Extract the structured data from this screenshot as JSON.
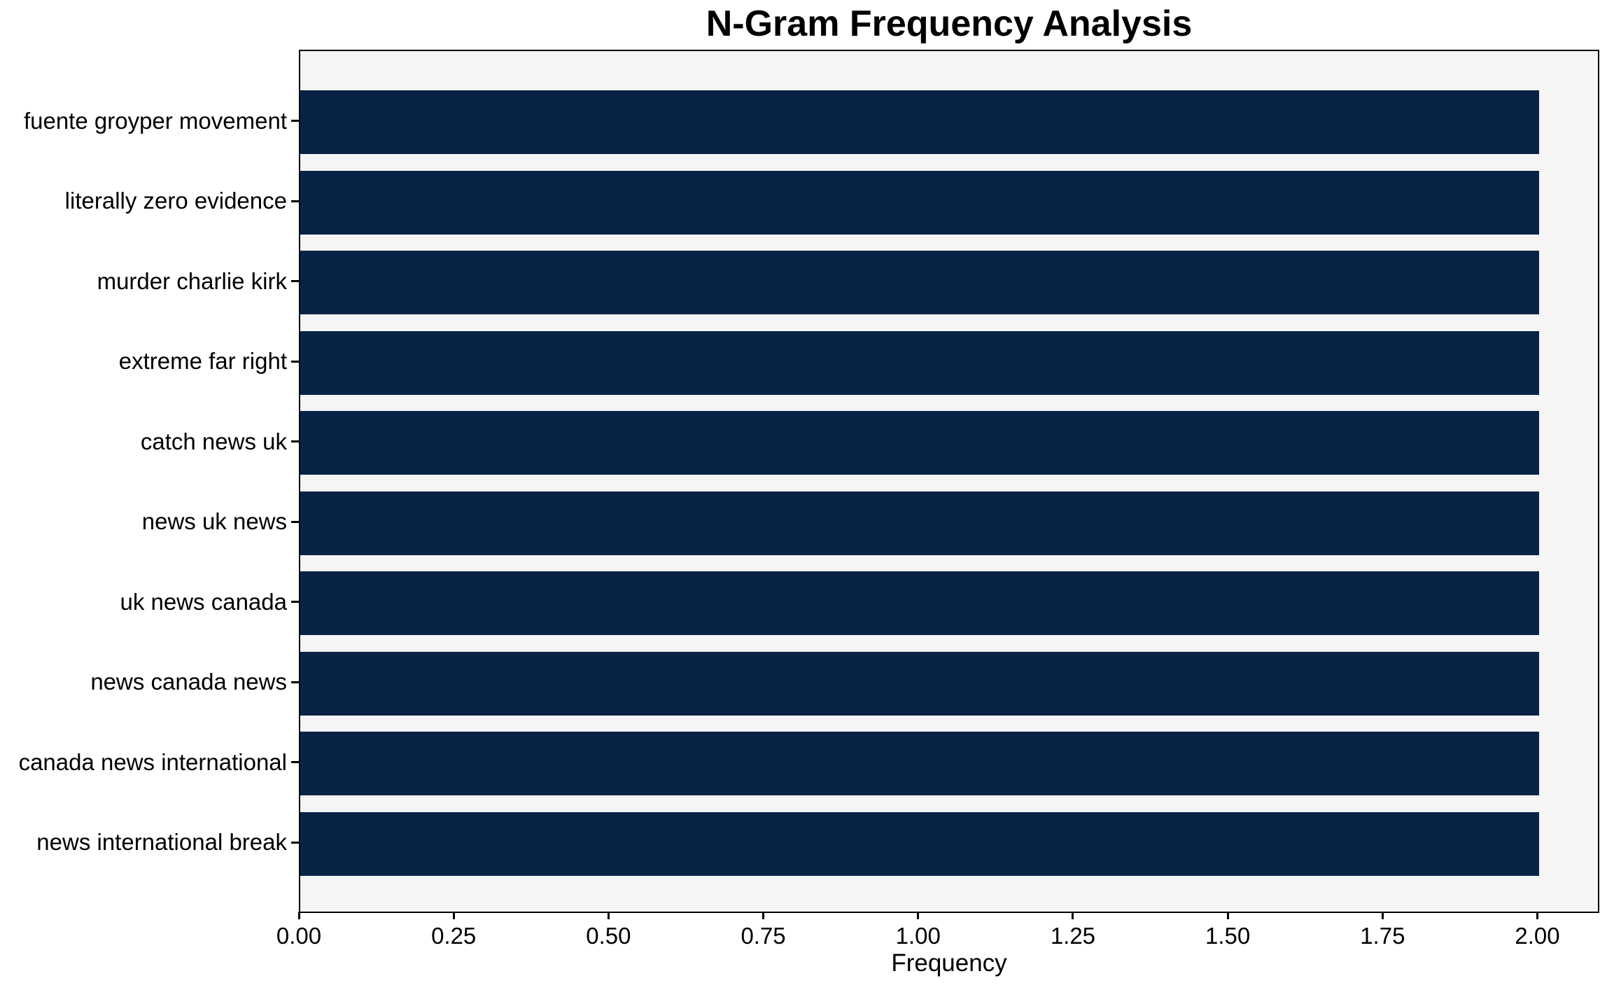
{
  "chart_data": {
    "type": "bar",
    "orientation": "horizontal",
    "title": "N-Gram Frequency Analysis",
    "xlabel": "Frequency",
    "ylabel": "",
    "categories": [
      "fuente groyper movement",
      "literally zero evidence",
      "murder charlie kirk",
      "extreme far right",
      "catch news uk",
      "news uk news",
      "uk news canada",
      "news canada news",
      "canada news international",
      "news international break"
    ],
    "values": [
      2,
      2,
      2,
      2,
      2,
      2,
      2,
      2,
      2,
      2
    ],
    "xlim": [
      0,
      2.1
    ],
    "xticks": [
      0,
      0.25,
      0.5,
      0.75,
      1,
      1.25,
      1.5,
      1.75,
      2
    ],
    "xtick_labels": [
      "0.00",
      "0.25",
      "0.50",
      "0.75",
      "1.00",
      "1.25",
      "1.50",
      "1.75",
      "2.00"
    ],
    "grid": false,
    "legend": null,
    "colors": {
      "bar": "#082345",
      "plot_background": "#f5f5f6",
      "figure_background": "#ffffff",
      "spine": "#000000",
      "text": "#000000"
    }
  }
}
